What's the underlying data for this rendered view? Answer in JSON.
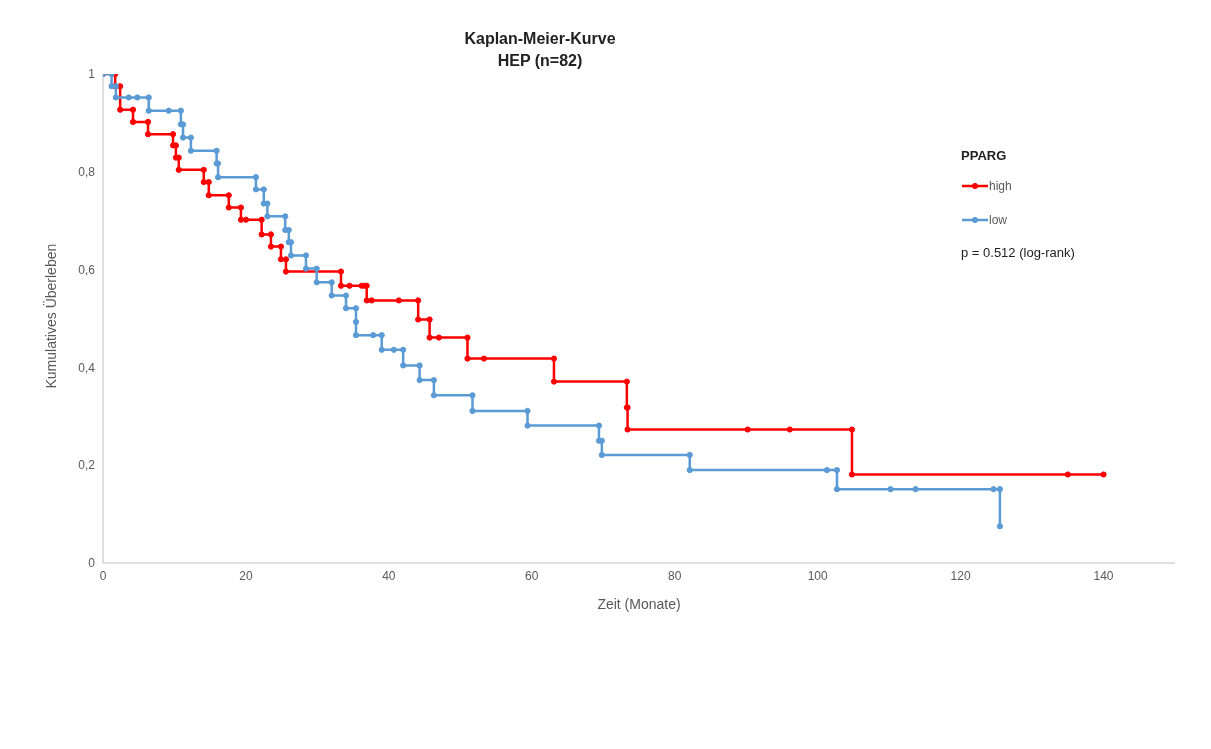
{
  "chart_data": {
    "type": "line",
    "title": "Kaplan-Meier-Kurve",
    "subtitle": "HEP (n=82)",
    "xlabel": "Zeit (Monate)",
    "ylabel": "Kumulatives Überleben",
    "legend_title": "PPARG",
    "legend": "top right",
    "marker": "circle",
    "line_style": "solid",
    "grid": false,
    "annotations": [
      "p = 0.512 (log-rank)"
    ],
    "xlim": [
      0,
      150
    ],
    "xticks": [
      0,
      20,
      40,
      60,
      80,
      100,
      120,
      140
    ],
    "ylim": [
      0,
      1
    ],
    "yticks": [
      0,
      {
        "value": 0.2,
        "label": "0,2"
      },
      {
        "value": 0.4,
        "label": "0,4"
      },
      {
        "value": 0.6,
        "label": "0,6"
      },
      {
        "value": 0.8,
        "label": "0,8"
      },
      1
    ],
    "series": [
      {
        "name": "high",
        "color": "#ff0000",
        "x": [
          0,
          1.7,
          1.7,
          2.4,
          2.4,
          4.2,
          4.2,
          6.3,
          6.3,
          9.8,
          9.8,
          10.2,
          10.2,
          10.6,
          10.6,
          14.1,
          14.1,
          14.8,
          14.8,
          17.6,
          17.6,
          19.3,
          19.3,
          20.0,
          22.2,
          22.2,
          23.5,
          23.5,
          24.9,
          24.9,
          25.6,
          25.6,
          33.3,
          33.3,
          34.5,
          36.2,
          36.6,
          36.9,
          36.9,
          37.6,
          41.4,
          44.1,
          44.1,
          45.7,
          45.7,
          47.0,
          51.0,
          51.0,
          53.3,
          63.1,
          63.1,
          73.3,
          73.3,
          73.4,
          73.4,
          90.2,
          96.1,
          104.8,
          104.8,
          135.0,
          140
        ],
        "values": [
          1,
          1,
          0.975,
          0.975,
          0.927,
          0.927,
          0.902,
          0.902,
          0.877,
          0.877,
          0.854,
          0.854,
          0.829,
          0.829,
          0.804,
          0.804,
          0.779,
          0.779,
          0.752,
          0.752,
          0.727,
          0.727,
          0.702,
          0.702,
          0.702,
          0.672,
          0.672,
          0.647,
          0.647,
          0.621,
          0.621,
          0.596,
          0.596,
          0.567,
          0.567,
          0.567,
          0.567,
          0.567,
          0.537,
          0.537,
          0.537,
          0.537,
          0.498,
          0.498,
          0.461,
          0.461,
          0.461,
          0.418,
          0.418,
          0.418,
          0.371,
          0.371,
          0.318,
          0.318,
          0.273,
          0.273,
          0.273,
          0.273,
          0.181,
          0.181,
          0.181
        ]
      },
      {
        "name": "low",
        "color": "#5b9bd5",
        "x": [
          0,
          1.2,
          1.2,
          1.8,
          1.8,
          3.6,
          4.8,
          6.4,
          6.4,
          9.2,
          10.9,
          10.9,
          11.2,
          11.2,
          12.3,
          12.3,
          15.9,
          15.9,
          16.1,
          16.1,
          21.4,
          21.4,
          22.5,
          22.5,
          23.0,
          23.0,
          25.5,
          25.5,
          26.0,
          26.0,
          26.3,
          26.3,
          28.4,
          28.4,
          29.9,
          29.9,
          32.0,
          32.0,
          34.0,
          34.0,
          35.4,
          35.4,
          35.4,
          37.8,
          39.0,
          39.0,
          40.7,
          42.0,
          42.0,
          44.3,
          44.3,
          46.3,
          46.3,
          51.7,
          51.7,
          59.4,
          59.4,
          69.4,
          69.4,
          69.8,
          69.8,
          82.1,
          82.1,
          101.3,
          102.7,
          102.7,
          110.2,
          113.7,
          124.6,
          125.5,
          125.5
        ],
        "values": [
          1,
          1,
          0.975,
          0.975,
          0.952,
          0.952,
          0.952,
          0.952,
          0.925,
          0.925,
          0.925,
          0.897,
          0.897,
          0.87,
          0.87,
          0.843,
          0.843,
          0.817,
          0.817,
          0.789,
          0.789,
          0.764,
          0.764,
          0.735,
          0.735,
          0.709,
          0.709,
          0.681,
          0.681,
          0.656,
          0.656,
          0.629,
          0.629,
          0.602,
          0.602,
          0.574,
          0.574,
          0.547,
          0.547,
          0.521,
          0.521,
          0.493,
          0.466,
          0.466,
          0.466,
          0.436,
          0.436,
          0.436,
          0.404,
          0.404,
          0.374,
          0.374,
          0.343,
          0.343,
          0.311,
          0.311,
          0.281,
          0.281,
          0.25,
          0.25,
          0.221,
          0.221,
          0.19,
          0.19,
          0.19,
          0.151,
          0.151,
          0.151,
          0.151,
          0.151,
          0.075
        ]
      }
    ]
  }
}
